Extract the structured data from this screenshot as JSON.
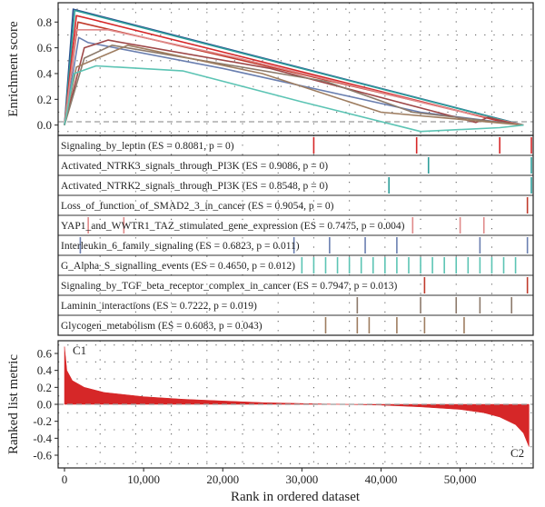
{
  "chart_data": [
    {
      "type": "line",
      "panel": "enrichment",
      "ylabel": "Enrichment score",
      "ylim": [
        -0.08,
        0.95
      ],
      "y_ticks": [
        "0.0",
        "0.2",
        "0.4",
        "0.6",
        "0.8"
      ],
      "y_tick_values": [
        0,
        0.2,
        0.4,
        0.6,
        0.8
      ],
      "xlim": [
        0,
        59000
      ],
      "grid": "dotted",
      "series": [
        {
          "color": "#2b4f8e",
          "points": [
            [
              0,
              0
            ],
            [
              1100,
              0.9
            ],
            [
              58000,
              0
            ]
          ]
        },
        {
          "color": "#2e9e9a",
          "points": [
            [
              0,
              0
            ],
            [
              1300,
              0.89
            ],
            [
              56000,
              0.03
            ],
            [
              58000,
              0
            ]
          ]
        },
        {
          "color": "#d62728",
          "points": [
            [
              0,
              0
            ],
            [
              1500,
              0.85
            ],
            [
              3500,
              0.82
            ],
            [
              55000,
              0.03
            ],
            [
              58000,
              0
            ]
          ]
        },
        {
          "color": "#c03a2b",
          "points": [
            [
              0,
              0
            ],
            [
              1700,
              0.8
            ],
            [
              57500,
              0
            ]
          ]
        },
        {
          "color": "#6a7fb0",
          "points": [
            [
              0,
              0
            ],
            [
              1800,
              0.68
            ],
            [
              3000,
              0.64
            ],
            [
              20000,
              0.44
            ],
            [
              45000,
              0.1
            ],
            [
              58000,
              0
            ]
          ]
        },
        {
          "color": "#e08a8a",
          "points": [
            [
              0,
              0
            ],
            [
              1500,
              0.74
            ],
            [
              5500,
              0.74
            ],
            [
              22000,
              0.52
            ],
            [
              49000,
              0.12
            ],
            [
              58000,
              0
            ]
          ]
        },
        {
          "color": "#9e4848",
          "points": [
            [
              0,
              0
            ],
            [
              2500,
              0.6
            ],
            [
              5500,
              0.66
            ],
            [
              26000,
              0.44
            ],
            [
              52000,
              0.02
            ],
            [
              53500,
              0.06
            ],
            [
              57500,
              0
            ]
          ]
        },
        {
          "color": "#8c7a6b",
          "points": [
            [
              0,
              0
            ],
            [
              2500,
              0.52
            ],
            [
              6000,
              0.62
            ],
            [
              33000,
              0.34
            ],
            [
              44000,
              0.1
            ],
            [
              58000,
              0
            ]
          ]
        },
        {
          "color": "#9e7d60",
          "points": [
            [
              0,
              0
            ],
            [
              1500,
              0.45
            ],
            [
              8000,
              0.62
            ],
            [
              25000,
              0.4
            ],
            [
              40000,
              0.1
            ],
            [
              58000,
              0
            ]
          ]
        },
        {
          "color": "#5cc4b4",
          "points": [
            [
              0,
              0
            ],
            [
              1200,
              0.4
            ],
            [
              4000,
              0.46
            ],
            [
              15000,
              0.42
            ],
            [
              30000,
              0.18
            ],
            [
              45000,
              -0.05
            ],
            [
              55000,
              -0.02
            ],
            [
              58000,
              0
            ]
          ]
        }
      ]
    },
    {
      "type": "table",
      "panel": "hits",
      "rows": [
        {
          "label": "Signaling_by_leptin (ES = 0.8081, p = 0)",
          "color": "#d62728",
          "hits": [
            31500,
            44500,
            55000,
            59000
          ]
        },
        {
          "label": "Activated_NTRK3_signals_through_PI3K (ES = 0.9086, p = 0)",
          "color": "#2e9e9a",
          "hits": [
            46000,
            59000
          ]
        },
        {
          "label": "Activated_NTRK2_signals_through_PI3K (ES = 0.8548, p = 0)",
          "color": "#2e9e9a",
          "hits": [
            41000,
            59000
          ]
        },
        {
          "label": "Loss_of_function_of_SMAD2_3_in_cancer (ES = 0.9054, p = 0)",
          "color": "#c03a2b",
          "hits": [
            58500
          ]
        },
        {
          "label": "YAP1_and_WWTR1_TAZ_stimulated_gene_expression (ES = 0.7475, p = 0.004)",
          "color": "#e08a8a",
          "hits": [
            3000,
            7500,
            44000,
            50000,
            53000
          ]
        },
        {
          "label": "Interleukin_6_family_signaling (ES = 0.6823, p = 0.011)",
          "color": "#6a7fb0",
          "hits": [
            2000,
            29000,
            33500,
            38000,
            42000,
            52500,
            58500
          ]
        },
        {
          "label": "G_Alpha_S_signalling_events (ES = 0.4650, p = 0.012)",
          "color": "#5cc4b4",
          "hits": [
            30000,
            31500,
            33000,
            34500,
            36000,
            37500,
            39000,
            40500,
            42000,
            43500,
            45000,
            46500,
            48000,
            49500,
            51000,
            52500,
            54000,
            55500,
            57000
          ]
        },
        {
          "label": "Signaling_by_TGF_beta_receptor_complex_in_cancer (ES = 0.7947, p = 0.013)",
          "color": "#c03a2b",
          "hits": [
            45500,
            58500
          ]
        },
        {
          "label": "Laminin_interactions (ES = 0.7222, p = 0.019)",
          "color": "#8c7a6b",
          "hits": [
            37000,
            45000,
            49500,
            52500,
            56500
          ]
        },
        {
          "label": "Glycogen_metabolism (ES = 0.6083, p = 0.043)",
          "color": "#9e7d60",
          "hits": [
            33000,
            37000,
            38500,
            42000,
            45500,
            50500
          ]
        }
      ]
    },
    {
      "type": "area",
      "panel": "ranked",
      "ylabel": "Ranked list metric",
      "xlabel": "Rank in ordered dataset",
      "ylim": [
        -0.75,
        0.75
      ],
      "y_ticks": [
        "0.6",
        "0.4",
        "0.2",
        "0.0",
        "-0.2",
        "-0.4",
        "-0.6"
      ],
      "y_tick_values": [
        0.6,
        0.4,
        0.2,
        0,
        -0.2,
        -0.4,
        -0.6
      ],
      "x_ticks": [
        "0",
        "10,000",
        "20,000",
        "30,000",
        "40,000",
        "50,000"
      ],
      "x_tick_values": [
        0,
        10000,
        20000,
        30000,
        40000,
        50000
      ],
      "xlim": [
        0,
        59000
      ],
      "fill_color": "#d62728",
      "annotations": [
        {
          "text": "C1",
          "position": "top-left"
        },
        {
          "text": "C2",
          "position": "bottom-right"
        }
      ],
      "points": [
        [
          0,
          0.68
        ],
        [
          300,
          0.4
        ],
        [
          1000,
          0.28
        ],
        [
          2500,
          0.2
        ],
        [
          5000,
          0.14
        ],
        [
          10000,
          0.09
        ],
        [
          15000,
          0.06
        ],
        [
          20000,
          0.04
        ],
        [
          25000,
          0.02
        ],
        [
          30000,
          0.01
        ],
        [
          35000,
          0.0
        ],
        [
          40000,
          -0.01
        ],
        [
          45000,
          -0.03
        ],
        [
          50000,
          -0.06
        ],
        [
          53000,
          -0.1
        ],
        [
          55000,
          -0.15
        ],
        [
          57000,
          -0.24
        ],
        [
          58000,
          -0.34
        ],
        [
          58700,
          -0.5
        ]
      ]
    }
  ]
}
